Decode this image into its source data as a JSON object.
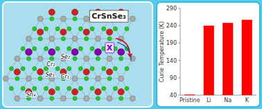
{
  "chart_data": {
    "type": "bar",
    "title": "CrSnSe₃",
    "categories": [
      "Pristine",
      "Li",
      "Na",
      "K"
    ],
    "values": [
      42,
      240,
      248,
      257
    ],
    "color": "#FF0000",
    "ylabel": "Curie Temperature (K)",
    "ylim": [
      40,
      290
    ],
    "yticks": [
      40,
      90,
      140,
      190,
      240,
      290
    ],
    "grid": false,
    "annotations": [
      "Se₂",
      "Cr₂",
      "Se₁",
      "Cr₁",
      "Sn₄",
      "X"
    ]
  }
}
